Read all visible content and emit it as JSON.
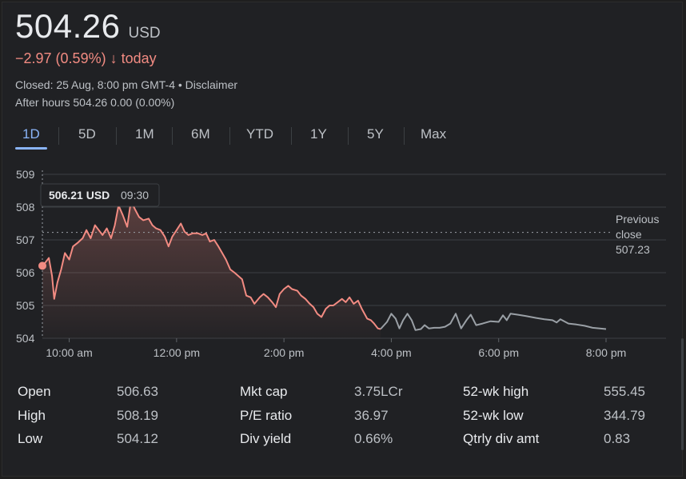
{
  "quote": {
    "price": "504.26",
    "currency": "USD",
    "change": "−2.97 (0.59%)",
    "change_arrow": "↓",
    "change_period": "today",
    "closed_text": "Closed: 25 Aug, 8:00 pm GMT-4 • Disclaimer",
    "after_hours": "After hours 504.26 0.00 (0.00%)"
  },
  "tabs": [
    {
      "label": "1D",
      "active": true
    },
    {
      "label": "5D"
    },
    {
      "label": "1M"
    },
    {
      "label": "6M"
    },
    {
      "label": "YTD"
    },
    {
      "label": "1Y"
    },
    {
      "label": "5Y"
    },
    {
      "label": "Max"
    }
  ],
  "tooltip": {
    "price": "506.21 USD",
    "time": "09:30"
  },
  "previous_close": {
    "line1": "Previous",
    "line2": "close",
    "value": "507.23",
    "level": 507.23
  },
  "colors": {
    "down": "#f28b82",
    "after_hours": "#9aa0a6",
    "accent": "#8ab4f8"
  },
  "chart_data": {
    "type": "line",
    "y_ticks": [
      "509",
      "508",
      "507",
      "506",
      "505",
      "504"
    ],
    "x_ticks": [
      "10:00 am",
      "12:00 pm",
      "2:00 pm",
      "4:00 pm",
      "6:00 pm",
      "8:00 pm"
    ],
    "ylim": [
      504,
      509
    ],
    "x_unit": "hours",
    "xlim": [
      9.5,
      20.0
    ],
    "x_tick_hours": [
      10,
      12,
      14,
      16,
      18,
      20
    ],
    "grid": true,
    "regular_session": [
      [
        9.5,
        506.21
      ],
      [
        9.55,
        506.3
      ],
      [
        9.62,
        506.45
      ],
      [
        9.68,
        505.9
      ],
      [
        9.72,
        505.2
      ],
      [
        9.78,
        505.7
      ],
      [
        9.85,
        506.1
      ],
      [
        9.92,
        506.6
      ],
      [
        10.0,
        506.4
      ],
      [
        10.07,
        506.8
      ],
      [
        10.15,
        506.9
      ],
      [
        10.25,
        507.05
      ],
      [
        10.32,
        507.3
      ],
      [
        10.4,
        507.05
      ],
      [
        10.48,
        507.45
      ],
      [
        10.55,
        507.3
      ],
      [
        10.62,
        507.15
      ],
      [
        10.7,
        507.35
      ],
      [
        10.78,
        507.05
      ],
      [
        10.85,
        507.45
      ],
      [
        10.92,
        508.05
      ],
      [
        11.0,
        507.75
      ],
      [
        11.08,
        507.4
      ],
      [
        11.15,
        508.19
      ],
      [
        11.22,
        507.95
      ],
      [
        11.3,
        507.7
      ],
      [
        11.38,
        507.6
      ],
      [
        11.48,
        507.65
      ],
      [
        11.55,
        507.45
      ],
      [
        11.62,
        507.35
      ],
      [
        11.7,
        507.3
      ],
      [
        11.78,
        507.1
      ],
      [
        11.85,
        506.8
      ],
      [
        11.92,
        507.1
      ],
      [
        12.0,
        507.3
      ],
      [
        12.08,
        507.5
      ],
      [
        12.15,
        507.25
      ],
      [
        12.22,
        507.15
      ],
      [
        12.3,
        507.2
      ],
      [
        12.4,
        507.2
      ],
      [
        12.48,
        507.15
      ],
      [
        12.55,
        507.2
      ],
      [
        12.62,
        506.95
      ],
      [
        12.7,
        507.0
      ],
      [
        12.78,
        506.8
      ],
      [
        12.85,
        506.6
      ],
      [
        12.92,
        506.4
      ],
      [
        13.0,
        506.1
      ],
      [
        13.08,
        506.0
      ],
      [
        13.15,
        505.9
      ],
      [
        13.22,
        505.8
      ],
      [
        13.3,
        505.3
      ],
      [
        13.38,
        505.25
      ],
      [
        13.45,
        505.05
      ],
      [
        13.55,
        505.25
      ],
      [
        13.62,
        505.35
      ],
      [
        13.7,
        505.25
      ],
      [
        13.78,
        505.1
      ],
      [
        13.85,
        504.95
      ],
      [
        13.92,
        505.35
      ],
      [
        14.0,
        505.5
      ],
      [
        14.08,
        505.6
      ],
      [
        14.15,
        505.5
      ],
      [
        14.25,
        505.45
      ],
      [
        14.32,
        505.3
      ],
      [
        14.4,
        505.2
      ],
      [
        14.48,
        505.05
      ],
      [
        14.55,
        504.95
      ],
      [
        14.62,
        504.75
      ],
      [
        14.7,
        504.65
      ],
      [
        14.78,
        504.9
      ],
      [
        14.85,
        505.0
      ],
      [
        14.92,
        505.0
      ],
      [
        15.0,
        505.1
      ],
      [
        15.08,
        505.2
      ],
      [
        15.15,
        505.1
      ],
      [
        15.22,
        505.25
      ],
      [
        15.3,
        505.05
      ],
      [
        15.38,
        505.15
      ],
      [
        15.45,
        504.9
      ],
      [
        15.55,
        504.6
      ],
      [
        15.62,
        504.55
      ],
      [
        15.68,
        504.45
      ],
      [
        15.75,
        504.3
      ],
      [
        15.8,
        504.28
      ]
    ],
    "after_hours_session": [
      [
        15.8,
        504.28
      ],
      [
        15.92,
        504.5
      ],
      [
        16.0,
        504.75
      ],
      [
        16.08,
        504.6
      ],
      [
        16.15,
        504.3
      ],
      [
        16.22,
        504.55
      ],
      [
        16.3,
        504.75
      ],
      [
        16.38,
        504.55
      ],
      [
        16.45,
        504.25
      ],
      [
        16.55,
        504.28
      ],
      [
        16.62,
        504.4
      ],
      [
        16.7,
        504.3
      ],
      [
        16.8,
        504.32
      ],
      [
        16.9,
        504.32
      ],
      [
        17.0,
        504.35
      ],
      [
        17.1,
        504.45
      ],
      [
        17.2,
        504.75
      ],
      [
        17.3,
        504.3
      ],
      [
        17.4,
        504.55
      ],
      [
        17.48,
        504.72
      ],
      [
        17.58,
        504.4
      ],
      [
        17.7,
        504.45
      ],
      [
        17.85,
        504.52
      ],
      [
        18.0,
        504.5
      ],
      [
        18.08,
        504.7
      ],
      [
        18.15,
        504.55
      ],
      [
        18.22,
        504.75
      ],
      [
        18.35,
        504.72
      ],
      [
        18.5,
        504.68
      ],
      [
        18.7,
        504.62
      ],
      [
        18.85,
        504.58
      ],
      [
        19.0,
        504.55
      ],
      [
        19.08,
        504.48
      ],
      [
        19.15,
        504.58
      ],
      [
        19.3,
        504.45
      ],
      [
        19.45,
        504.42
      ],
      [
        19.6,
        504.38
      ],
      [
        19.75,
        504.32
      ],
      [
        20.0,
        504.28
      ]
    ]
  },
  "stats": [
    [
      {
        "label": "Open",
        "value": "506.63"
      },
      {
        "label": "Mkt cap",
        "value": "3.75LCr"
      },
      {
        "label": "52-wk high",
        "value": "555.45"
      }
    ],
    [
      {
        "label": "High",
        "value": "508.19"
      },
      {
        "label": "P/E ratio",
        "value": "36.97"
      },
      {
        "label": "52-wk low",
        "value": "344.79"
      }
    ],
    [
      {
        "label": "Low",
        "value": "504.12"
      },
      {
        "label": "Div yield",
        "value": "0.66%"
      },
      {
        "label": "Qtrly div amt",
        "value": "0.83"
      }
    ]
  ]
}
